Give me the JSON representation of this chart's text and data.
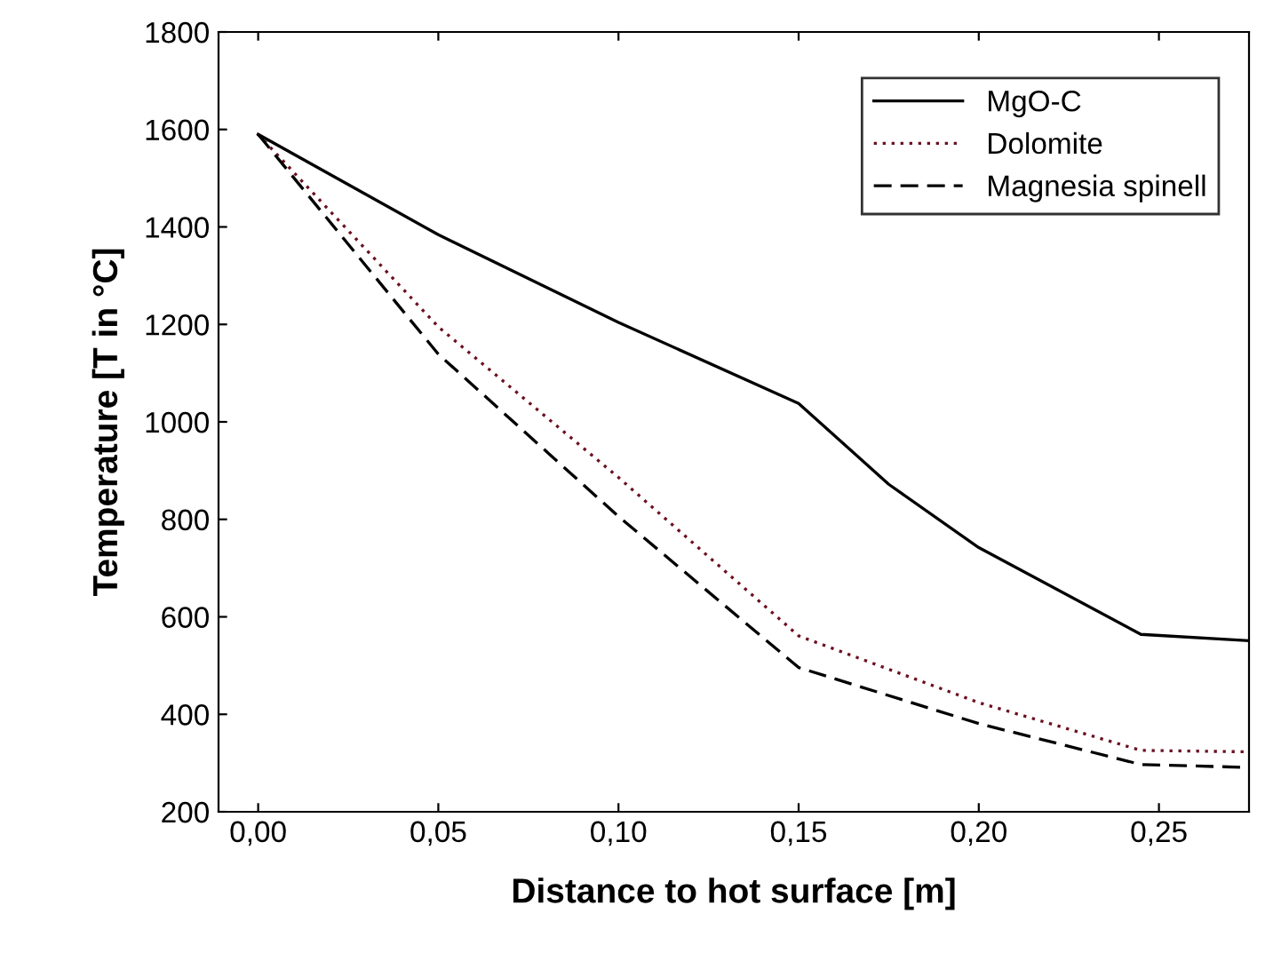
{
  "chart_data": {
    "type": "line",
    "xlabel": "Distance to hot surface [m]",
    "ylabel": "Temperature [T in °C]",
    "xlim": [
      -0.011,
      0.275
    ],
    "ylim": [
      200,
      1800
    ],
    "xticks": [
      {
        "value": 0,
        "label": "0,00"
      },
      {
        "value": 0.05,
        "label": "0,05"
      },
      {
        "value": 0.1,
        "label": "0,10"
      },
      {
        "value": 0.15,
        "label": "0,15"
      },
      {
        "value": 0.2,
        "label": "0,20"
      },
      {
        "value": 0.25,
        "label": "0,25"
      }
    ],
    "yticks": [
      200,
      400,
      600,
      800,
      1000,
      1200,
      1400,
      1600,
      1800
    ],
    "grid": false,
    "legend": "top right",
    "marker": "none",
    "series": [
      {
        "name": "MgO-C",
        "color": "#000000",
        "line_style": "solid",
        "x": [
          0,
          0.05,
          0.1,
          0.15,
          0.175,
          0.2,
          0.245,
          0.275
        ],
        "values": [
          1590,
          1384,
          1204,
          1038,
          872,
          742,
          564,
          551
        ]
      },
      {
        "name": "Dolomite",
        "color": "#6b1020",
        "line_style": "dotted",
        "x": [
          0,
          0.05,
          0.1,
          0.15,
          0.2,
          0.245,
          0.275
        ],
        "values": [
          1590,
          1195,
          886,
          561,
          424,
          326,
          323
        ]
      },
      {
        "name": "Magnesia spinell",
        "color": "#000000",
        "line_style": "dashed",
        "x": [
          0,
          0.05,
          0.1,
          0.15,
          0.2,
          0.245,
          0.275
        ],
        "values": [
          1590,
          1139,
          806,
          496,
          381,
          297,
          291
        ]
      }
    ]
  }
}
